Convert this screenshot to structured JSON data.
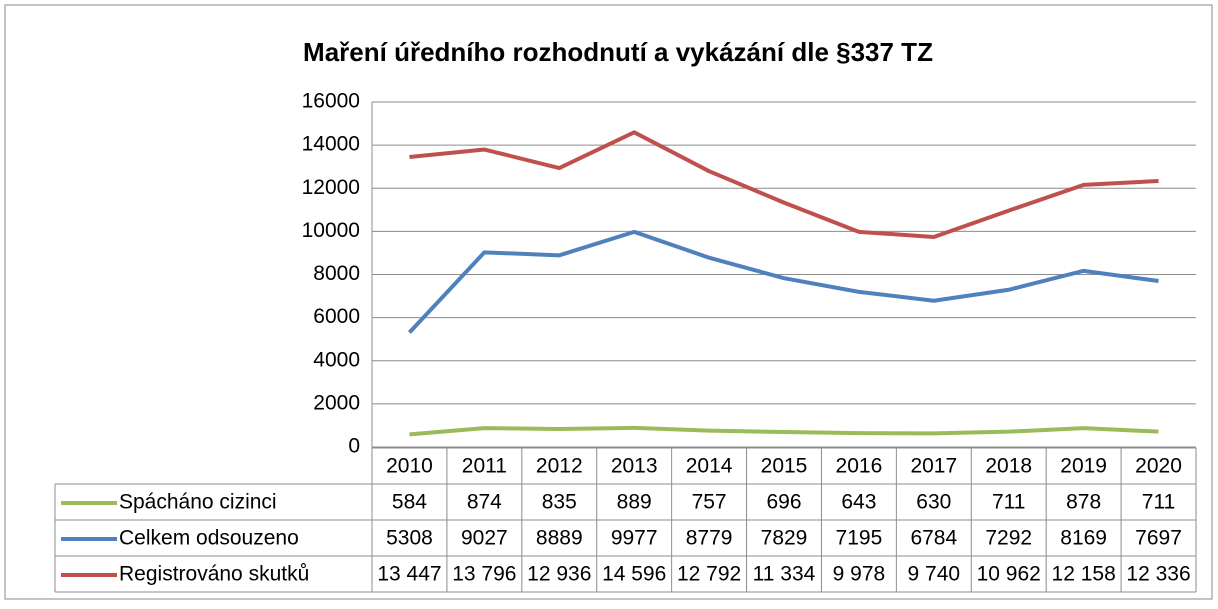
{
  "chart_data": {
    "type": "line",
    "title": "Maření úředního rozhodnutí a vykázání dle §337 TZ",
    "categories": [
      "2010",
      "2011",
      "2012",
      "2013",
      "2014",
      "2015",
      "2016",
      "2017",
      "2018",
      "2019",
      "2020"
    ],
    "series": [
      {
        "name": "Spácháno cizinci",
        "color": "#9bbb59",
        "values": [
          584,
          874,
          835,
          889,
          757,
          696,
          643,
          630,
          711,
          878,
          711
        ]
      },
      {
        "name": "Celkem odsouzeno",
        "color": "#4f81bd",
        "values": [
          5308,
          9027,
          8889,
          9977,
          8779,
          7829,
          7195,
          6784,
          7292,
          8169,
          7697
        ]
      },
      {
        "name": "Registrováno skutků",
        "color": "#c0504d",
        "values": [
          13447,
          13796,
          12936,
          14596,
          12792,
          11334,
          9978,
          9740,
          10962,
          12158,
          12336
        ],
        "value_labels": [
          "13 447",
          "13 796",
          "12 936",
          "14 596",
          "12 792",
          "11 334",
          "9 978",
          "9 740",
          "10 962",
          "12 158",
          "12 336"
        ]
      }
    ],
    "ylim": [
      0,
      16000
    ],
    "yticks": [
      0,
      2000,
      4000,
      6000,
      8000,
      10000,
      12000,
      14000,
      16000
    ],
    "grid": true,
    "data_table": true
  }
}
